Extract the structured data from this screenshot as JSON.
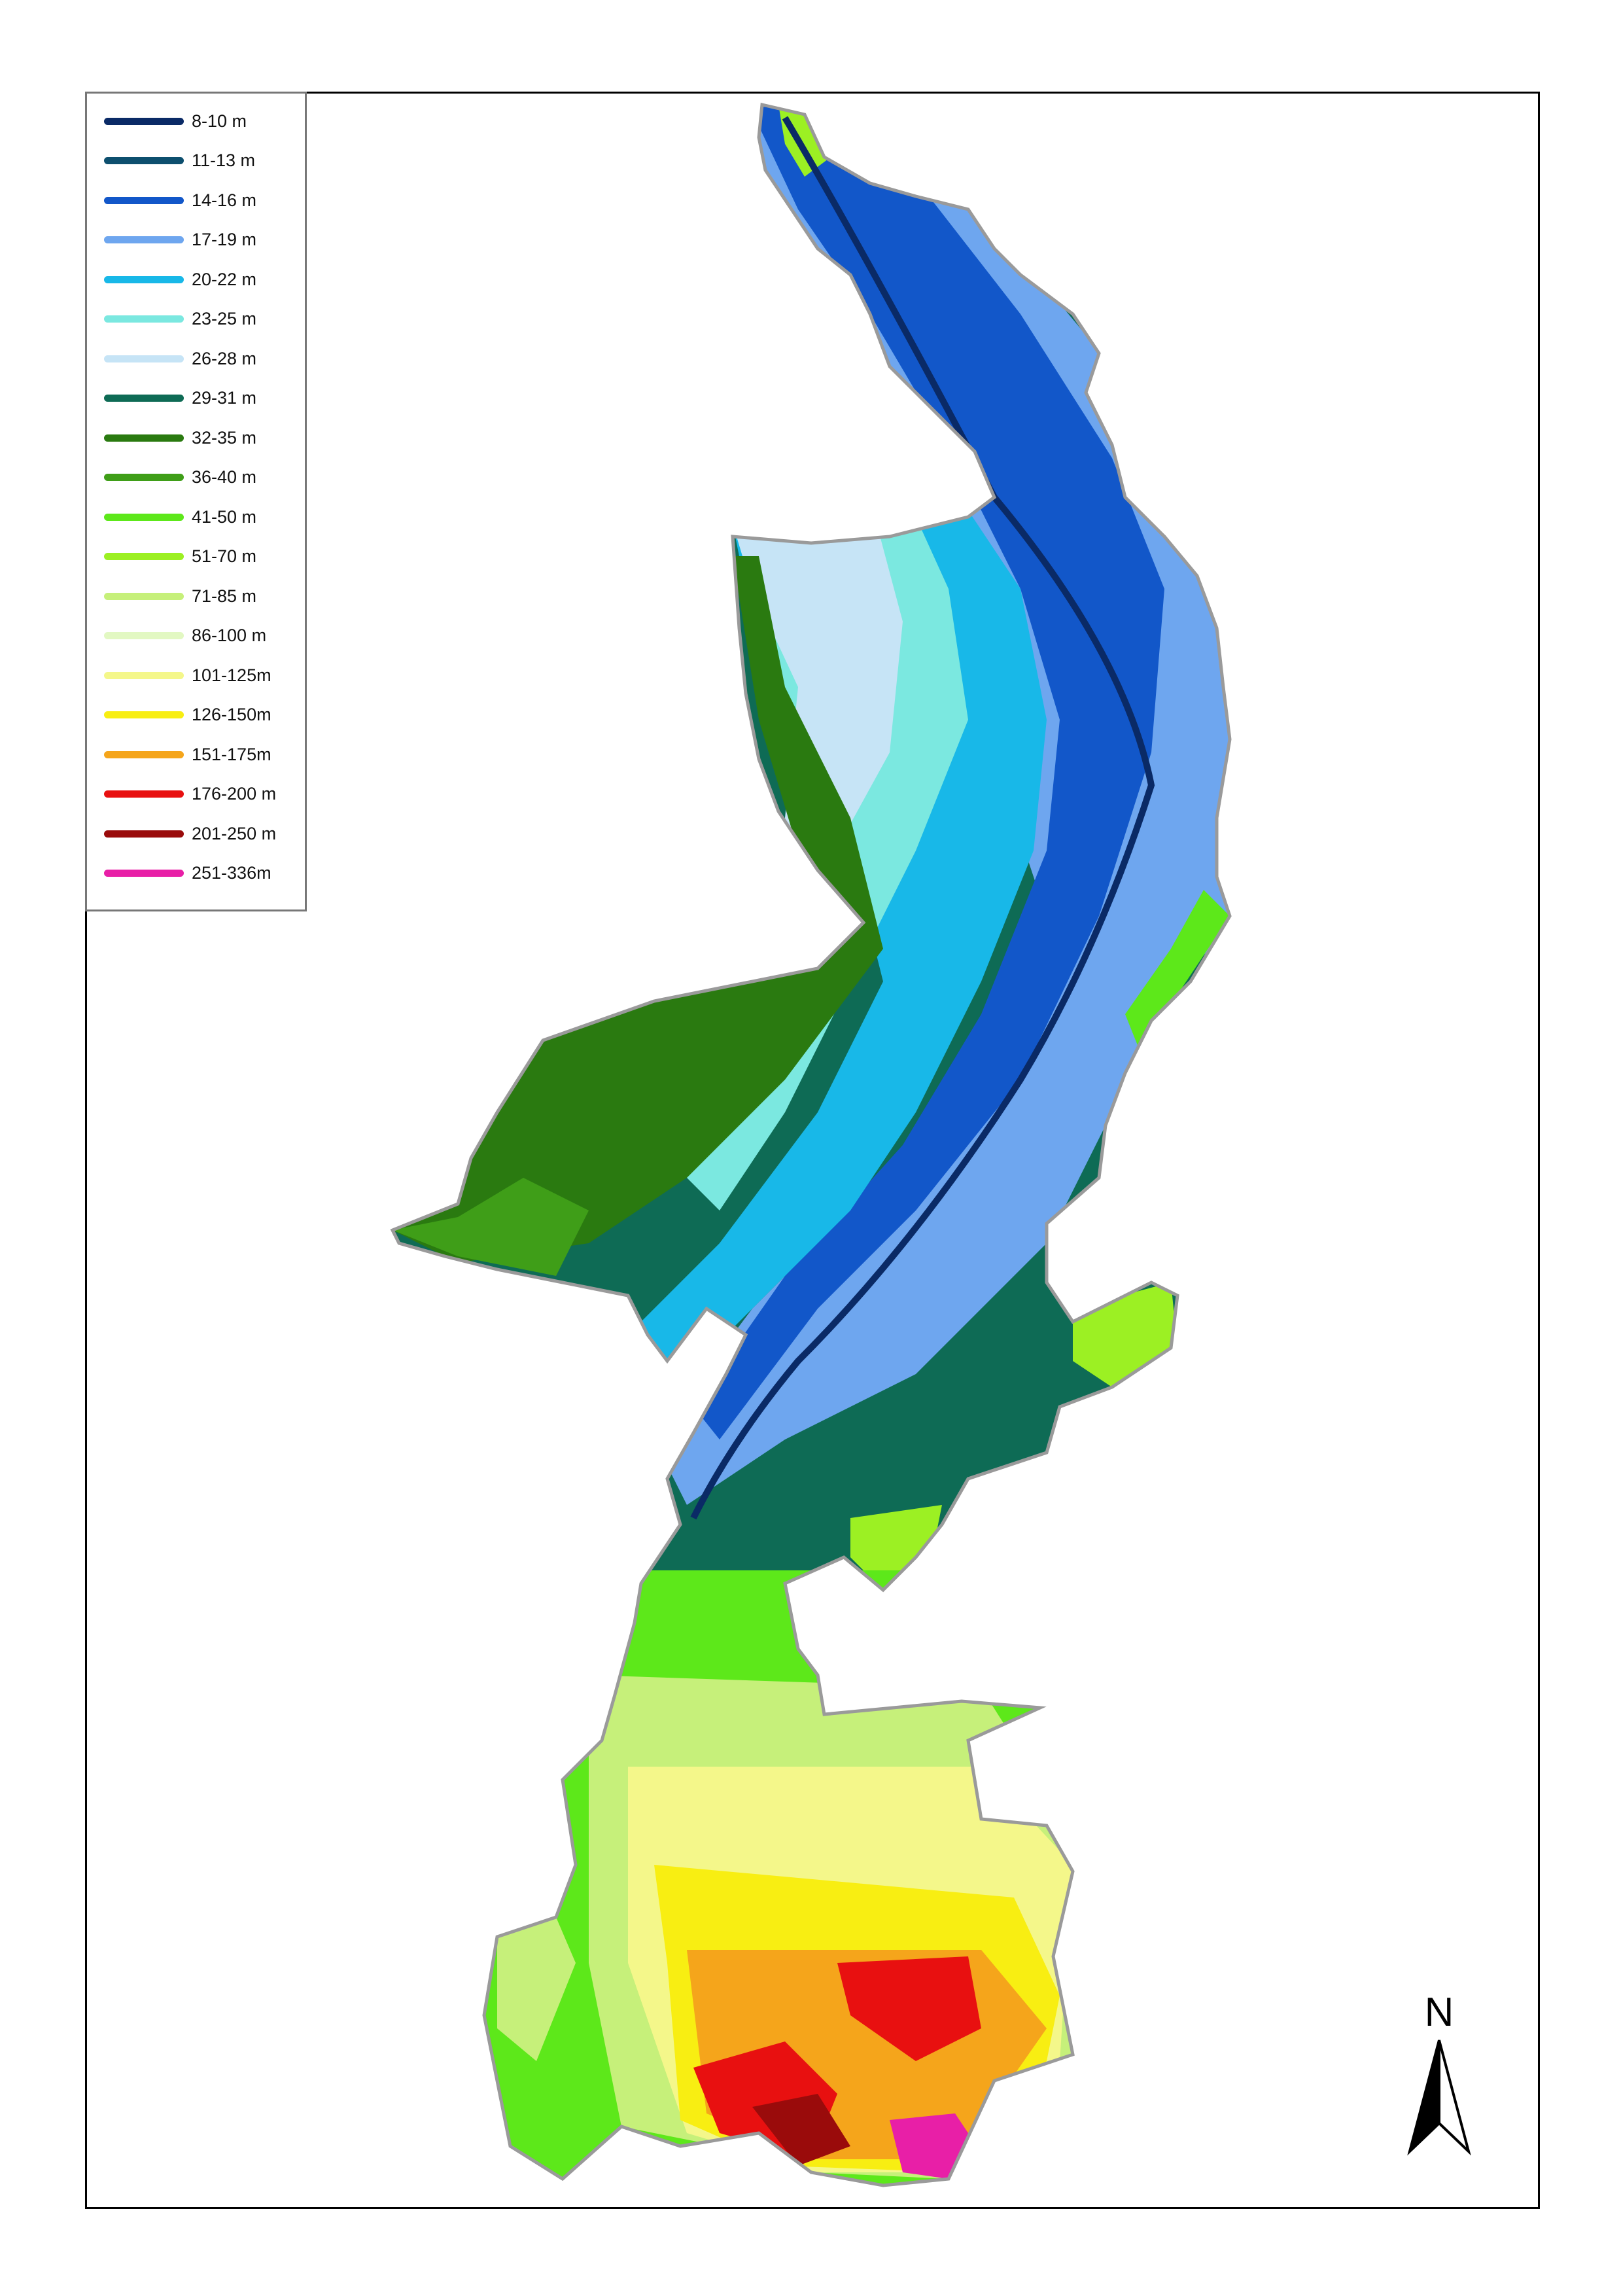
{
  "legend": {
    "items": [
      {
        "label": "8-10 m",
        "color": "#0a2a66"
      },
      {
        "label": "11-13 m",
        "color": "#0d4f6e"
      },
      {
        "label": "14-16 m",
        "color": "#1257c9"
      },
      {
        "label": "17-19 m",
        "color": "#6ea6ef"
      },
      {
        "label": "20-22 m",
        "color": "#18b8e8"
      },
      {
        "label": "23-25 m",
        "color": "#7be8e0"
      },
      {
        "label": "26-28 m",
        "color": "#c6e4f6"
      },
      {
        "label": "29-31 m",
        "color": "#0e6b55"
      },
      {
        "label": "32-35 m",
        "color": "#2a7a10"
      },
      {
        "label": "36-40 m",
        "color": "#3f9e18"
      },
      {
        "label": "41-50 m",
        "color": "#5de81a"
      },
      {
        "label": "51-70 m",
        "color": "#9cf023"
      },
      {
        "label": "71-85 m",
        "color": "#c6f07a"
      },
      {
        "label": "86-100 m",
        "color": "#e2f8c2"
      },
      {
        "label": "101-125m",
        "color": "#f4f78a"
      },
      {
        "label": "126-150m",
        "color": "#f8ee12"
      },
      {
        "label": "151-175m",
        "color": "#f5a51b"
      },
      {
        "label": "176-200 m",
        "color": "#e81010"
      },
      {
        "label": "201-250 m",
        "color": "#9a0b0b"
      },
      {
        "label": "251-336m",
        "color": "#e81fa7"
      }
    ]
  },
  "north_arrow": {
    "label": "N"
  }
}
